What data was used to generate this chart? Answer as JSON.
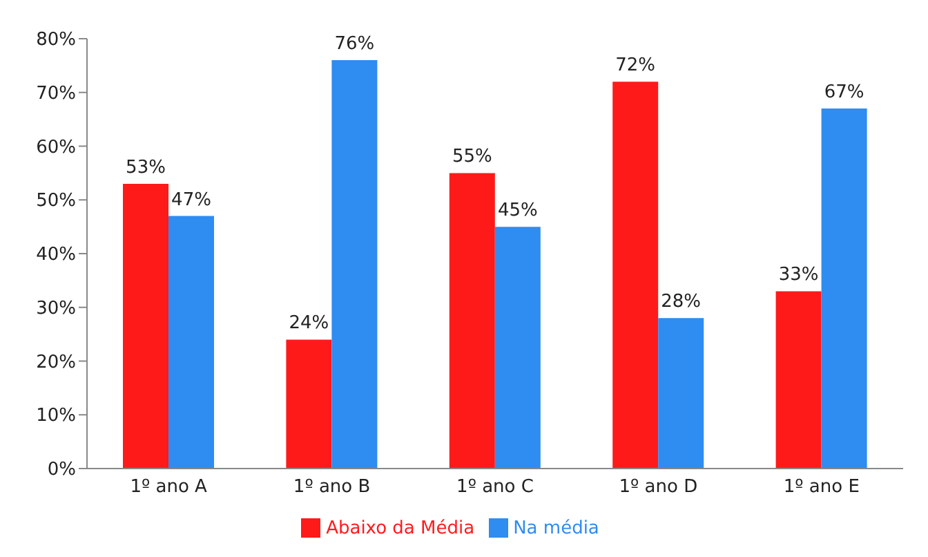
{
  "chart_data": {
    "type": "bar",
    "categories": [
      "1º ano A",
      "1º ano B",
      "1º ano C",
      "1º ano D",
      "1º ano E"
    ],
    "series": [
      {
        "name": "Abaixo da Média",
        "color": "#ff1a1a",
        "values": [
          53,
          24,
          55,
          72,
          33
        ],
        "value_labels": [
          "53%",
          "24%",
          "55%",
          "72%",
          "33%"
        ]
      },
      {
        "name": "Na média",
        "color": "#2f8cf0",
        "values": [
          47,
          76,
          45,
          28,
          67
        ],
        "value_labels": [
          "47%",
          "76%",
          "45%",
          "28%",
          "67%"
        ]
      }
    ],
    "ylim": [
      0,
      80
    ],
    "yticks": [
      {
        "value": 0,
        "label": "0%"
      },
      {
        "value": 10,
        "label": "10%"
      },
      {
        "value": 20,
        "label": "20%"
      },
      {
        "value": 30,
        "label": "30%"
      },
      {
        "value": 40,
        "label": "40%"
      },
      {
        "value": 50,
        "label": "50%"
      },
      {
        "value": 60,
        "label": "60%"
      },
      {
        "value": 70,
        "label": "70%"
      },
      {
        "value": 80,
        "label": "80%"
      }
    ],
    "grid": false,
    "legend": "bottom"
  }
}
